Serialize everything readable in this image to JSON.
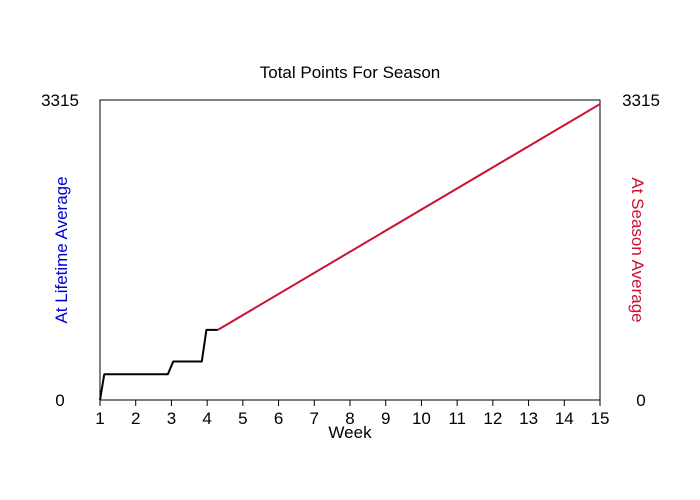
{
  "chart_data": {
    "type": "line",
    "title": "Total Points For Season",
    "xlabel": "Week",
    "ylabel_left": "At Lifetime Average",
    "ylabel_right": "At Season Average",
    "xlim": [
      1,
      15
    ],
    "ylim": [
      0,
      3315
    ],
    "xticks": [
      "1",
      "2",
      "3",
      "4",
      "5",
      "6",
      "7",
      "8",
      "9",
      "10",
      "11",
      "12",
      "13",
      "14",
      "15"
    ],
    "yticks_left": [
      "0",
      "3315"
    ],
    "yticks_right": [
      "0",
      "3315"
    ],
    "grid": false,
    "series": [
      {
        "color": "#000000",
        "x": [
          1.0,
          1.12,
          2.9,
          3.05,
          3.85,
          3.98,
          4.3
        ],
        "y": [
          0,
          285,
          285,
          425,
          425,
          775,
          775
        ]
      },
      {
        "color": "#cc1133",
        "x": [
          4.3,
          15.0
        ],
        "y": [
          775,
          3270
        ]
      }
    ],
    "colors": {
      "left_label": "#0000cc",
      "right_label": "#cc1133"
    }
  }
}
